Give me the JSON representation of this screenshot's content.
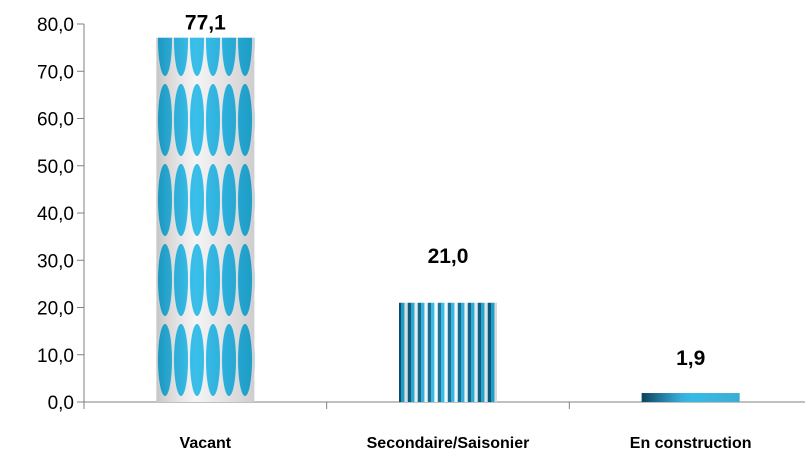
{
  "chart_data": {
    "type": "bar",
    "categories": [
      "Vacant",
      "Secondaire/Saisonier",
      "En construction"
    ],
    "values": [
      77.1,
      21.0,
      1.9
    ],
    "value_labels": [
      "77,1",
      "21,0",
      "1,9"
    ],
    "ylim": [
      0,
      80
    ],
    "y_ticks": [
      0,
      10,
      20,
      30,
      40,
      50,
      60,
      70,
      80
    ],
    "y_tick_labels": [
      "0,0",
      "10,0",
      "20,0",
      "30,0",
      "40,0",
      "50,0",
      "60,0",
      "70,0",
      "80,0"
    ],
    "title": "",
    "xlabel": "",
    "ylabel": "",
    "grid": false,
    "legend": "none",
    "colors": {
      "bar_blue": "#1fb6e8",
      "bar_dark": "#0c5f86",
      "bar_light": "#9fe2fb",
      "bar_gap": "#f2f2f2",
      "axis": "#808080"
    }
  }
}
